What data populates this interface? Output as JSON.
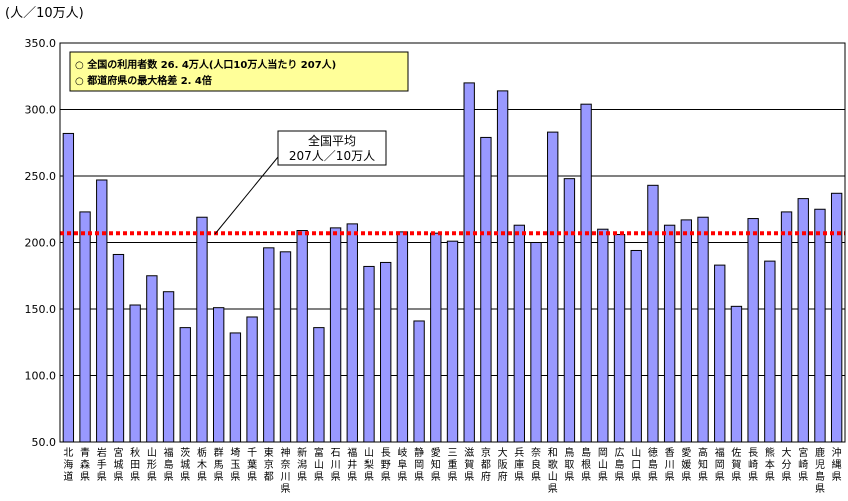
{
  "chart_data": {
    "type": "bar",
    "unit_label": "(人／10万人)",
    "categories": [
      "北海道",
      "青森県",
      "岩手県",
      "宮城県",
      "秋田県",
      "山形県",
      "福島県",
      "茨城県",
      "栃木県",
      "群馬県",
      "埼玉県",
      "千葉県",
      "東京都",
      "神奈川県",
      "新潟県",
      "富山県",
      "石川県",
      "福井県",
      "山梨県",
      "長野県",
      "岐阜県",
      "静岡県",
      "愛知県",
      "三重県",
      "滋賀県",
      "京都府",
      "大阪府",
      "兵庫県",
      "奈良県",
      "和歌山県",
      "鳥取県",
      "島根県",
      "岡山県",
      "広島県",
      "山口県",
      "徳島県",
      "香川県",
      "愛媛県",
      "高知県",
      "福岡県",
      "佐賀県",
      "長崎県",
      "熊本県",
      "大分県",
      "宮崎県",
      "鹿児島県",
      "沖縄県"
    ],
    "values": [
      282,
      223,
      247,
      191,
      153,
      175,
      163,
      136,
      219,
      151,
      132,
      144,
      196,
      193,
      209,
      136,
      211,
      214,
      182,
      185,
      208,
      141,
      207,
      201,
      320,
      279,
      314,
      213,
      200,
      283,
      248,
      304,
      210,
      206,
      194,
      243,
      213,
      217,
      219,
      183,
      152,
      218,
      186,
      223,
      233,
      225,
      237
    ],
    "y_ticks": [
      "50.0",
      "100.0",
      "150.0",
      "200.0",
      "250.0",
      "300.0",
      "350.0"
    ],
    "ylim": [
      50,
      350
    ],
    "average": 207,
    "average_label_line1": "全国平均",
    "average_label_line2": "207人／10万人",
    "bar_color": "#9999ff",
    "average_line_color": "#ff0000",
    "info_box_color": "#ffff99",
    "grid": true
  },
  "info_box": {
    "line1": "○  全国の利用者数        26. 4万人(人口10万人当たり 207人)",
    "line2": "○  都道府県の最大格差   2. 4倍"
  }
}
